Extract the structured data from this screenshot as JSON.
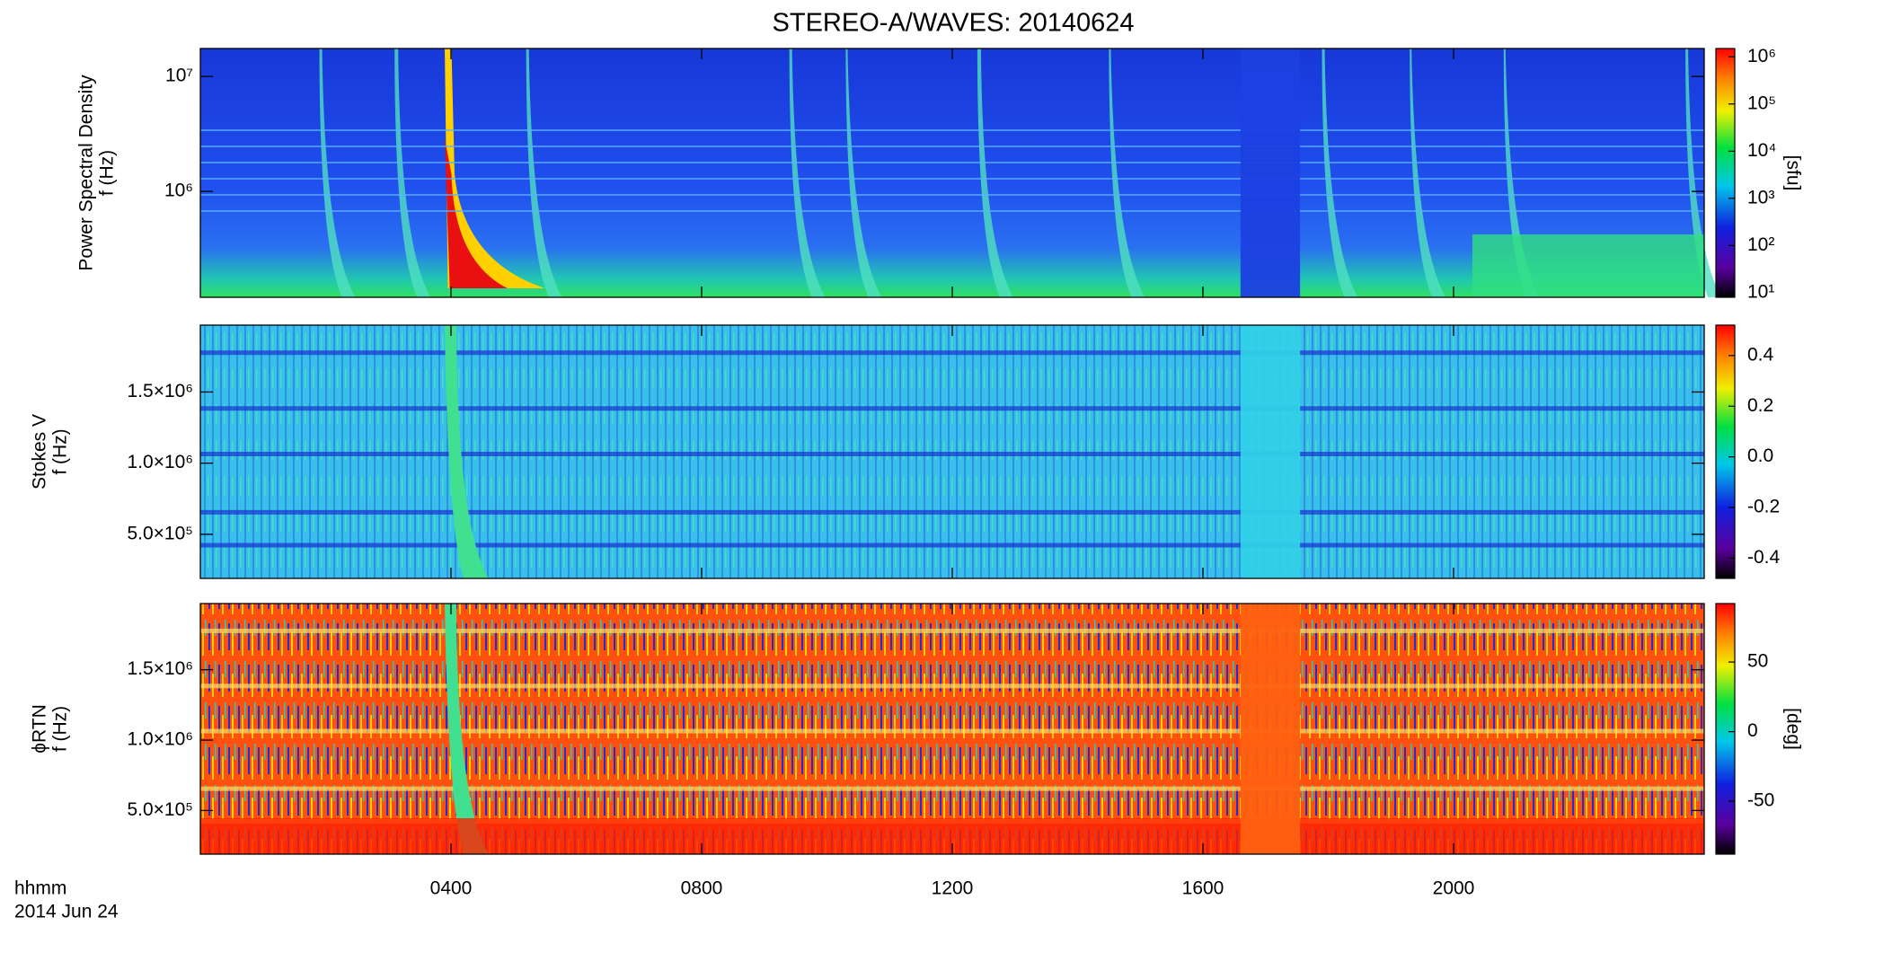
{
  "title": "STEREO-A/WAVES: 20140624",
  "time_axis": {
    "xlim": [
      0,
      24
    ],
    "xticks": [
      {
        "value": 4,
        "label": "0400"
      },
      {
        "value": 8,
        "label": "0800"
      },
      {
        "value": 12,
        "label": "1200"
      },
      {
        "value": 16,
        "label": "1600"
      },
      {
        "value": 20,
        "label": "2000"
      }
    ],
    "label_lines": [
      "hhmm",
      "2014 Jun 24"
    ]
  },
  "chart_data": [
    {
      "type": "spectrogram",
      "ylabel_lines": [
        "Power Spectral Density",
        "f (Hz)"
      ],
      "ylog": true,
      "ylim": [
        120000,
        17500000
      ],
      "yticks": [
        {
          "value": 1000000,
          "label": "10⁶"
        },
        {
          "value": 10000000,
          "label": "10⁷"
        }
      ],
      "colorbar": {
        "log": true,
        "clim": [
          8,
          1500000
        ],
        "label": "[sfu]",
        "ticks": [
          {
            "value": 10,
            "label": "10¹"
          },
          {
            "value": 100,
            "label": "10²"
          },
          {
            "value": 1000,
            "label": "10³"
          },
          {
            "value": 10000,
            "label": "10⁴"
          },
          {
            "value": 100000,
            "label": "10⁵"
          },
          {
            "value": 1000000,
            "label": "10⁶"
          }
        ]
      }
    },
    {
      "type": "spectrogram",
      "ylabel_lines": [
        "Stokes V",
        "f (Hz)"
      ],
      "ylog": false,
      "ylim": [
        190000,
        1970000
      ],
      "yticks": [
        {
          "value": 500000,
          "label": "5.0×10⁵"
        },
        {
          "value": 1000000,
          "label": "1.0×10⁶"
        },
        {
          "value": 1500000,
          "label": "1.5×10⁶"
        }
      ],
      "colorbar": {
        "log": false,
        "clim": [
          -0.48,
          0.52
        ],
        "ticks": [
          -0.4,
          -0.2,
          {
            "value": 0,
            "label": "0.0"
          },
          0.2,
          0.4
        ]
      }
    },
    {
      "type": "spectrogram",
      "ylabel_lines": [
        "ϕRTN",
        "f (Hz)"
      ],
      "ylog": false,
      "ylim": [
        190000,
        1970000
      ],
      "yticks": [
        {
          "value": 500000,
          "label": "5.0×10⁵"
        },
        {
          "value": 1000000,
          "label": "1.0×10⁶"
        },
        {
          "value": 1500000,
          "label": "1.5×10⁶"
        }
      ],
      "colorbar": {
        "log": false,
        "clim": [
          -88,
          92
        ],
        "label": "[deg]",
        "ticks": [
          -50,
          0,
          50
        ]
      }
    }
  ]
}
